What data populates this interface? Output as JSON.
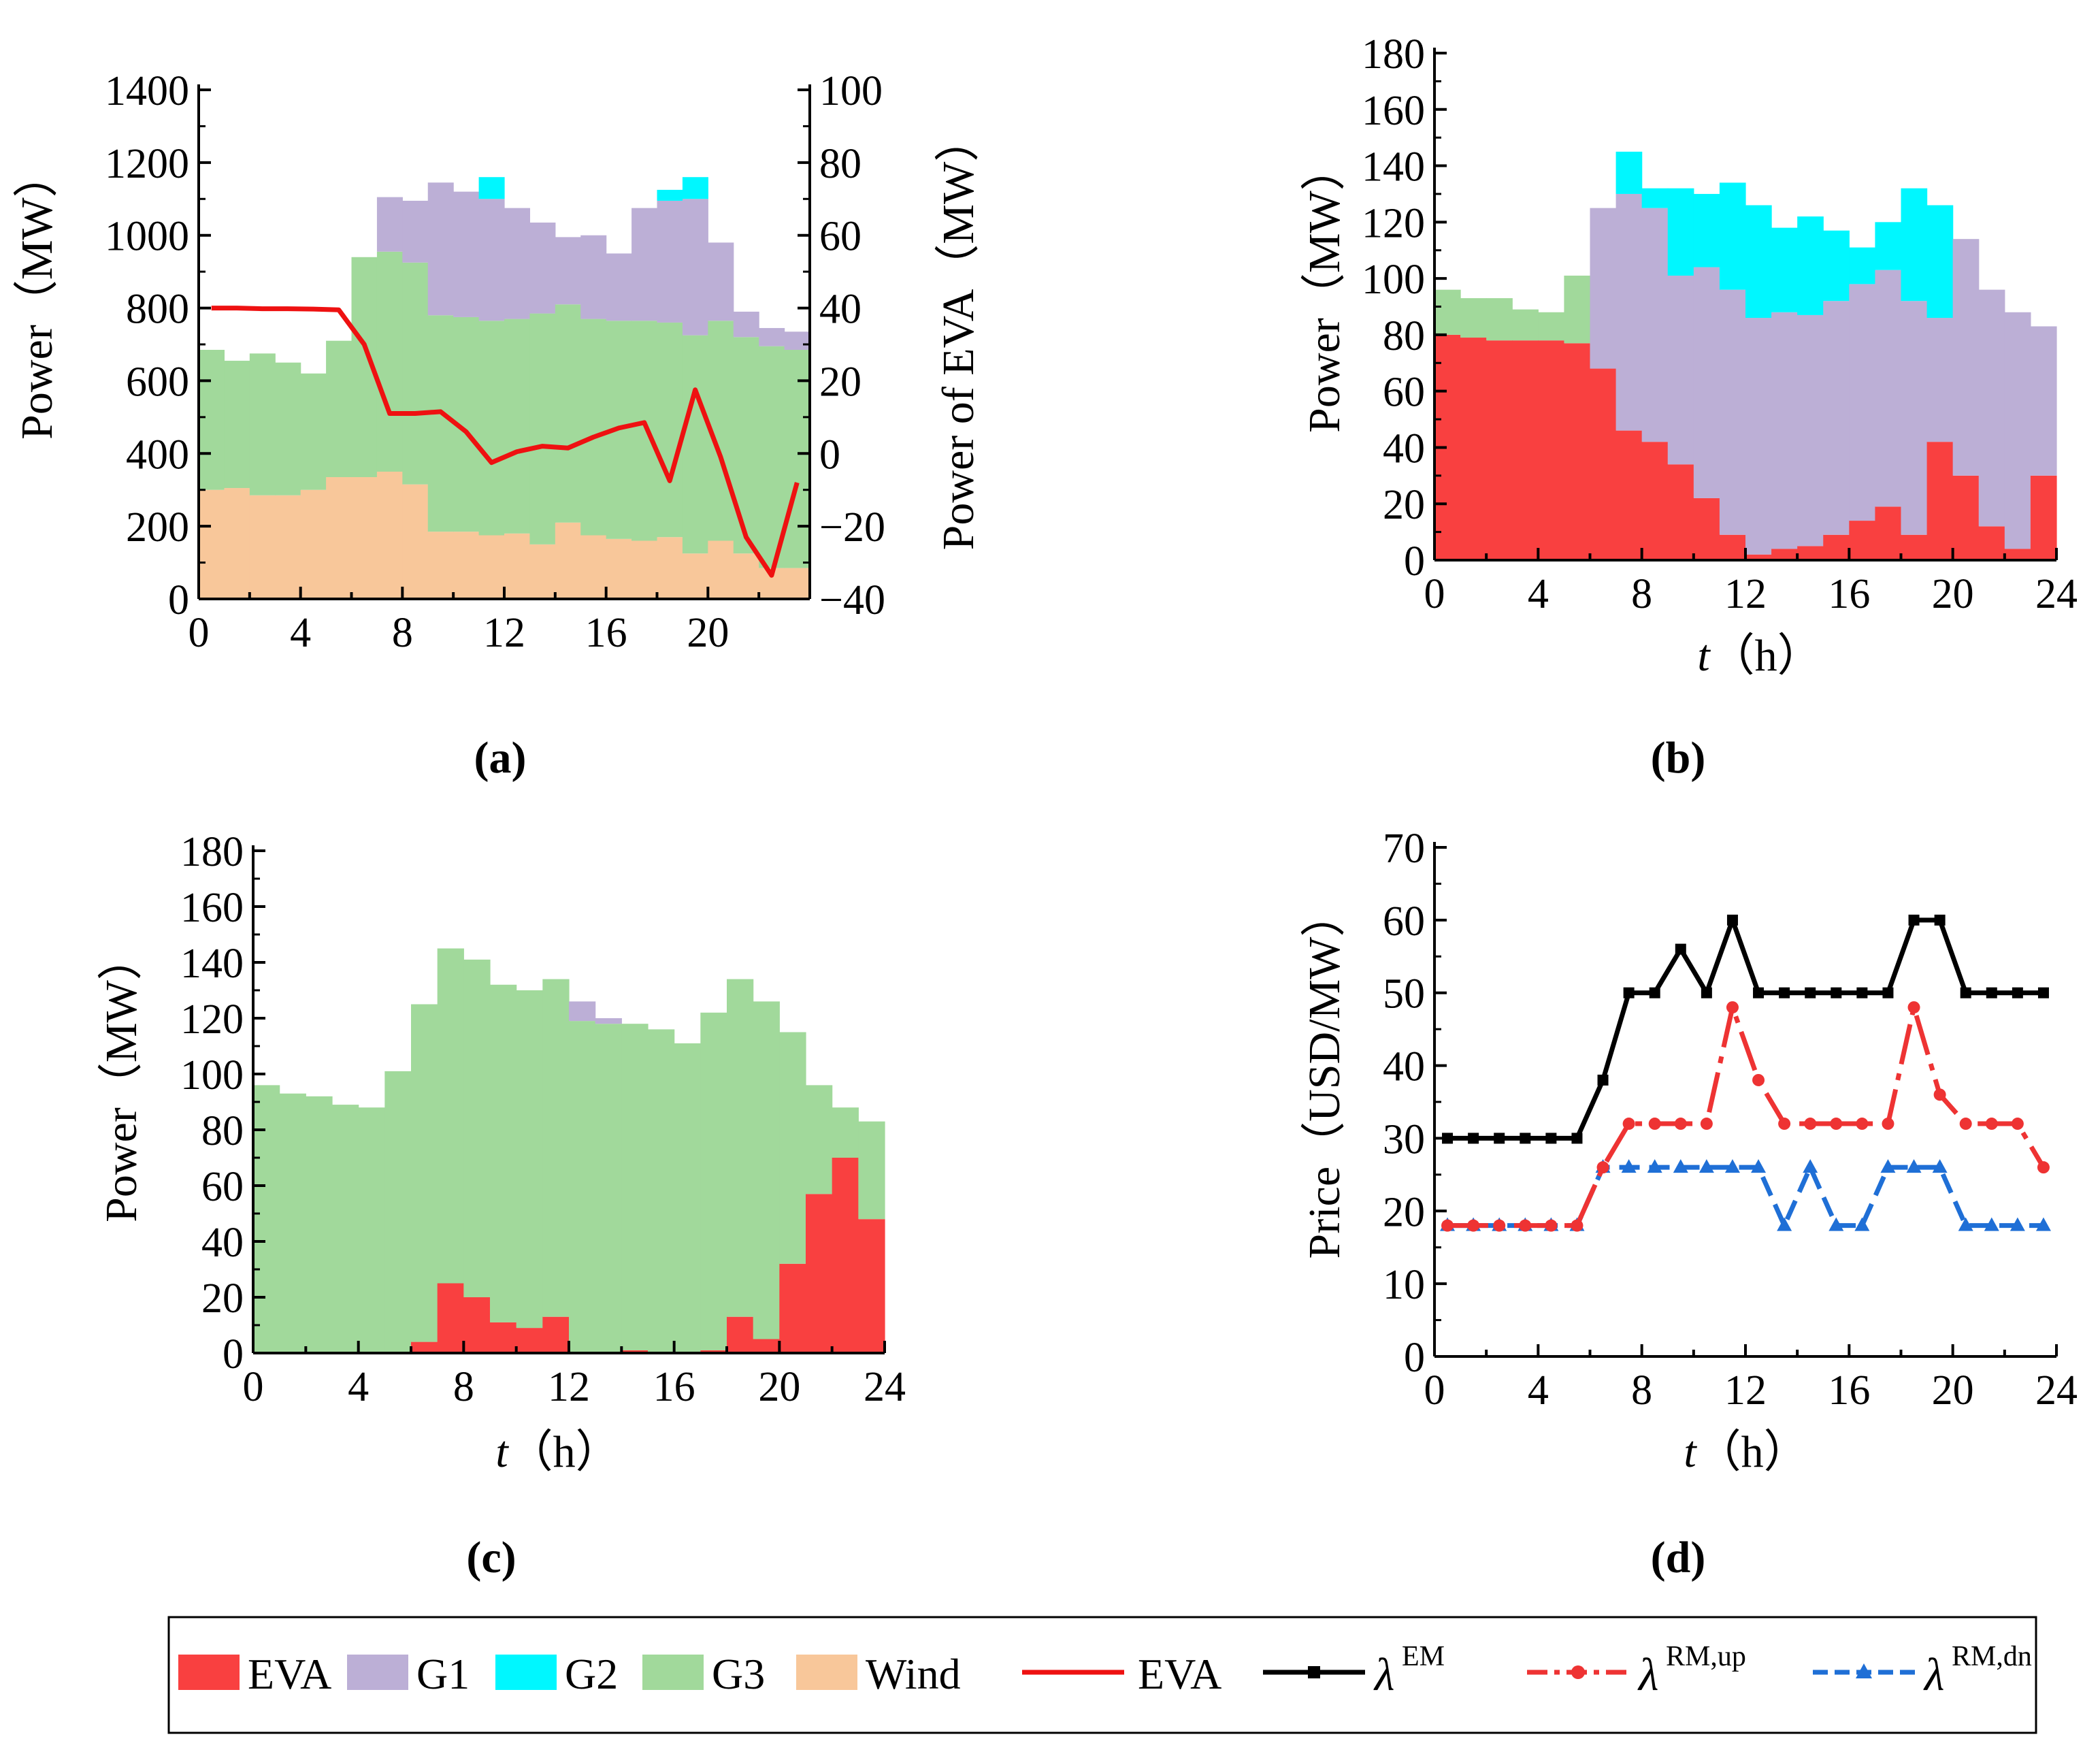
{
  "chart_data": [
    {
      "id": "a",
      "caption": "a",
      "type": "stacked-bar+line",
      "xlabel": "",
      "ylabel": "Power（MW）",
      "y2label": "Power of EVA（MW）",
      "xticks": [
        "0",
        "4",
        "8",
        "12",
        "16",
        "20"
      ],
      "xlim": [
        0,
        24
      ],
      "ylim": [
        0,
        1400
      ],
      "yticks": [
        "0",
        "200",
        "400",
        "600",
        "800",
        "1000",
        "1200",
        "1400"
      ],
      "y2lim": [
        -40,
        100
      ],
      "y2ticks": [
        "−40",
        "−20",
        "0",
        "20",
        "40",
        "60",
        "80",
        "100"
      ],
      "series": [
        {
          "name": "Wind",
          "color": "#F8C79A",
          "values": [
            300,
            305,
            285,
            285,
            300,
            335,
            335,
            350,
            315,
            185,
            185,
            175,
            180,
            150,
            210,
            175,
            165,
            160,
            170,
            125,
            160,
            125,
            85,
            85
          ]
        },
        {
          "name": "G3",
          "color": "#A1D99B",
          "values": [
            385,
            350,
            390,
            365,
            320,
            375,
            605,
            605,
            610,
            595,
            590,
            590,
            590,
            635,
            600,
            595,
            600,
            605,
            590,
            600,
            605,
            595,
            610,
            600
          ]
        },
        {
          "name": "G1",
          "color": "#BCAFD6",
          "values": [
            0,
            0,
            0,
            0,
            0,
            0,
            0,
            150,
            170,
            365,
            345,
            335,
            305,
            250,
            185,
            230,
            185,
            310,
            335,
            375,
            215,
            70,
            50,
            50
          ]
        },
        {
          "name": "G2",
          "color": "#00F7FF",
          "values": [
            0,
            0,
            0,
            0,
            0,
            0,
            0,
            0,
            0,
            0,
            0,
            60,
            0,
            0,
            0,
            0,
            0,
            0,
            30,
            60,
            0,
            0,
            0,
            0
          ]
        }
      ],
      "line": {
        "name": "EVA",
        "color": "#EE1111",
        "x": [
          0.5,
          1.5,
          2.5,
          3.5,
          4.5,
          5.5,
          6.5,
          7.5,
          8.5,
          9.5,
          10.5,
          11.5,
          12.5,
          13.5,
          14.5,
          15.5,
          16.5,
          17.5,
          18.5,
          19.5,
          20.5,
          21.5,
          22.5,
          23.5
        ],
        "y": [
          40,
          40,
          39.8,
          39.8,
          39.7,
          39.5,
          30,
          11,
          11,
          11.5,
          6,
          -2.5,
          0.5,
          2,
          1.5,
          4.5,
          7,
          8.5,
          -7.5,
          17.5,
          -1,
          -23,
          -33.5,
          -8
        ]
      }
    },
    {
      "id": "b",
      "caption": "b",
      "type": "stacked-bar",
      "xlabel_italic": "t",
      "xlabel_rest": "（h）",
      "ylabel": "Power（MW）",
      "xticks": [
        "0",
        "4",
        "8",
        "12",
        "16",
        "20",
        "24"
      ],
      "xlim": [
        0,
        24
      ],
      "ylim": [
        0,
        180
      ],
      "yticks": [
        "0",
        "20",
        "40",
        "60",
        "80",
        "100",
        "120",
        "140",
        "160",
        "180"
      ],
      "series": [
        {
          "name": "EVA",
          "color": "#F94040",
          "values": [
            80,
            79,
            78,
            78,
            78,
            77,
            68,
            46,
            42,
            34,
            22,
            9,
            2,
            4,
            5,
            9,
            14,
            19,
            9,
            42,
            30,
            12,
            4,
            30
          ]
        },
        {
          "name": "G3",
          "color": "#A1D99B",
          "values": [
            16,
            14,
            15,
            11,
            10,
            24,
            0,
            0,
            0,
            0,
            0,
            0,
            0,
            0,
            0,
            0,
            0,
            0,
            0,
            0,
            0,
            0,
            0,
            0
          ]
        },
        {
          "name": "G1",
          "color": "#BCAFD6",
          "values": [
            0,
            0,
            0,
            0,
            0,
            0,
            57,
            84,
            83,
            67,
            82,
            87,
            84,
            84,
            82,
            83,
            84,
            84,
            83,
            44,
            84,
            84,
            84,
            53
          ]
        },
        {
          "name": "G2",
          "color": "#00F7FF",
          "values": [
            0,
            0,
            0,
            0,
            0,
            0,
            0,
            15,
            7,
            31,
            26,
            38,
            40,
            30,
            35,
            25,
            13,
            17,
            40,
            40,
            0,
            0,
            0,
            0
          ]
        }
      ]
    },
    {
      "id": "c",
      "caption": "c",
      "type": "stacked-bar",
      "xlabel_italic": "t",
      "xlabel_rest": "（h）",
      "ylabel": "Power（MW）",
      "xticks": [
        "0",
        "4",
        "8",
        "12",
        "16",
        "20",
        "24"
      ],
      "xlim": [
        0,
        24
      ],
      "ylim": [
        0,
        180
      ],
      "yticks": [
        "0",
        "20",
        "40",
        "60",
        "80",
        "100",
        "120",
        "140",
        "160",
        "180"
      ],
      "series": [
        {
          "name": "EVA",
          "color": "#F94040",
          "values": [
            0,
            0,
            0,
            0,
            0,
            0,
            4,
            25,
            20,
            11,
            9,
            13,
            0,
            0,
            1,
            0,
            0,
            1,
            13,
            5,
            32,
            57,
            70,
            48
          ]
        },
        {
          "name": "G3",
          "color": "#A1D99B",
          "values": [
            96,
            93,
            92,
            89,
            88,
            101,
            121,
            120,
            121,
            121,
            121,
            121,
            119,
            118,
            117,
            116,
            111,
            121,
            121,
            121,
            83,
            39,
            18,
            35
          ]
        },
        {
          "name": "G1",
          "color": "#BCAFD6",
          "values": [
            0,
            0,
            0,
            0,
            0,
            0,
            0,
            0,
            0,
            0,
            0,
            0,
            7,
            2,
            0,
            0,
            0,
            0,
            0,
            0,
            0,
            0,
            0,
            0
          ]
        }
      ]
    },
    {
      "id": "d",
      "caption": "d",
      "type": "line",
      "xlabel_italic": "t",
      "xlabel_rest": "（h）",
      "ylabel": "Price（USD/MW）",
      "xticks": [
        "0",
        "4",
        "8",
        "12",
        "16",
        "20",
        "24"
      ],
      "xlim": [
        0,
        24
      ],
      "ylim": [
        0,
        70
      ],
      "yticks": [
        "0",
        "10",
        "20",
        "30",
        "40",
        "50",
        "60",
        "70"
      ],
      "x": [
        0.5,
        1.5,
        2.5,
        3.5,
        4.5,
        5.5,
        6.5,
        7.5,
        8.5,
        9.5,
        10.5,
        11.5,
        12.5,
        13.5,
        14.5,
        15.5,
        16.5,
        17.5,
        18.5,
        19.5,
        20.5,
        21.5,
        22.5,
        23.5
      ],
      "series": [
        {
          "name": "EM",
          "color": "#000000",
          "marker": "square",
          "values": [
            30,
            30,
            30,
            30,
            30,
            30,
            38,
            50,
            50,
            56,
            50,
            60,
            50,
            50,
            50,
            50,
            50,
            50,
            60,
            60,
            50,
            50,
            50,
            50
          ]
        },
        {
          "name": "RM,up",
          "color": "#EE3333",
          "marker": "circle",
          "dash": "60 14 10 14",
          "values": [
            18,
            18,
            18,
            18,
            18,
            18,
            26,
            32,
            32,
            32,
            32,
            48,
            38,
            32,
            32,
            32,
            32,
            32,
            48,
            36,
            32,
            32,
            32,
            26
          ]
        },
        {
          "name": "RM,dn",
          "color": "#1F6FD6",
          "marker": "triangle",
          "dash": "30 14",
          "values": [
            18,
            18,
            18,
            18,
            18,
            18,
            26,
            26,
            26,
            26,
            26,
            26,
            26,
            18,
            26,
            18,
            18,
            26,
            26,
            26,
            18,
            18,
            18,
            18
          ]
        }
      ]
    }
  ],
  "legend": {
    "items": [
      {
        "type": "rect",
        "color": "#F94040",
        "label": "EVA"
      },
      {
        "type": "rect",
        "color": "#BCAFD6",
        "label": "G1"
      },
      {
        "type": "rect",
        "color": "#00F7FF",
        "label": "G2"
      },
      {
        "type": "rect",
        "color": "#A1D99B",
        "label": "G3"
      },
      {
        "type": "rect",
        "color": "#F8C79A",
        "label": "Wind"
      },
      {
        "type": "line",
        "color": "#EE1111",
        "label": "EVA"
      },
      {
        "type": "marker-line",
        "color": "#000000",
        "marker": "square",
        "symbol": "λ",
        "sup": "EM"
      },
      {
        "type": "marker-line",
        "color": "#EE3333",
        "marker": "circle",
        "dash": "30 10 8 10",
        "symbol": "λ",
        "sup": "RM,up"
      },
      {
        "type": "marker-line",
        "color": "#1F6FD6",
        "marker": "triangle",
        "dash": "22 10",
        "symbol": "λ",
        "sup": "RM,dn"
      }
    ]
  }
}
